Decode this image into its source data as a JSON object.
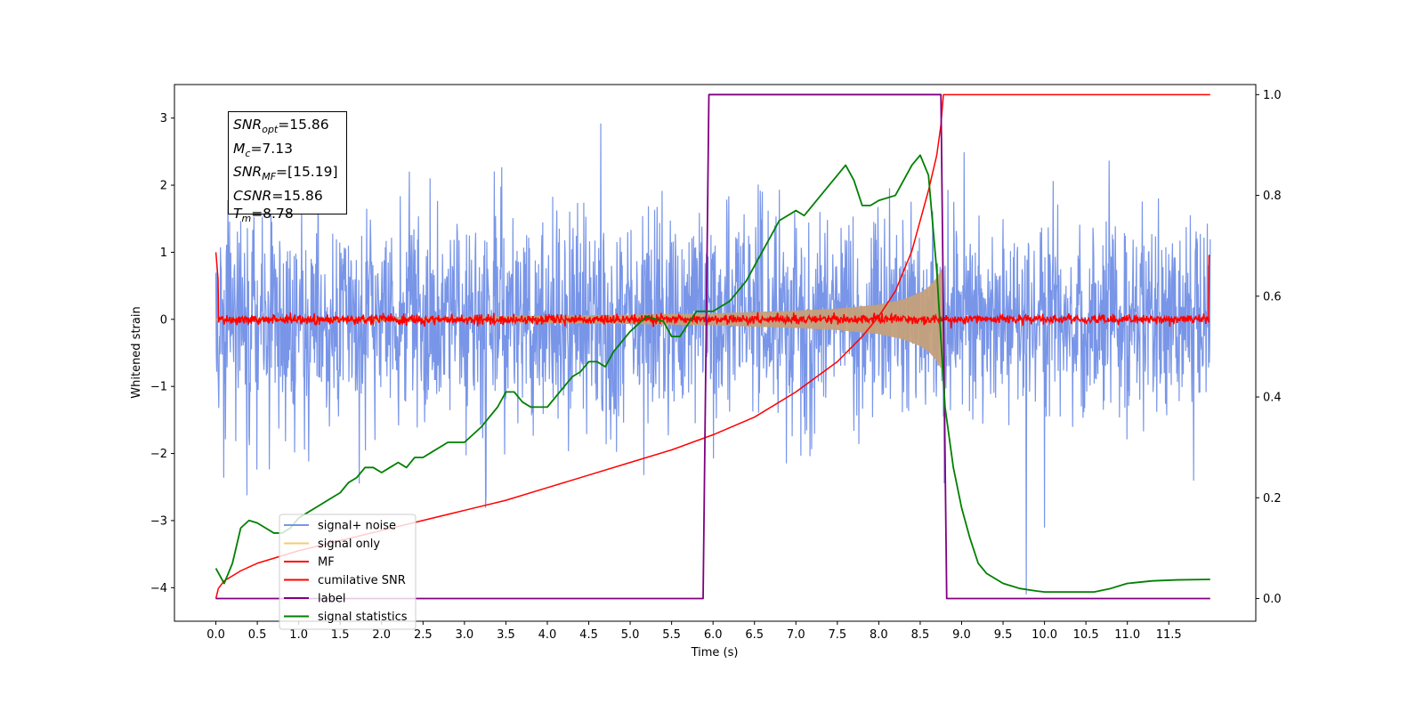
{
  "chart_data": {
    "type": "line",
    "xlabel": "Time (s)",
    "ylabel": "Whitened strain",
    "xlim": [
      -0.5,
      12.55
    ],
    "ylim": [
      -4.5,
      3.5
    ],
    "y2lim": [
      -0.045,
      1.02
    ],
    "x_ticks": [
      0.0,
      0.5,
      1.0,
      1.5,
      2.0,
      2.5,
      3.0,
      3.5,
      4.0,
      4.5,
      5.0,
      5.5,
      6.0,
      6.5,
      7.0,
      7.5,
      8.0,
      8.5,
      9.0,
      9.5,
      10.0,
      10.5,
      11.0,
      11.5
    ],
    "x_tick_labels": [
      "0.0",
      "0.5",
      "1.0",
      "1.5",
      "2.0",
      "2.5",
      "3.0",
      "3.5",
      "4.0",
      "4.5",
      "5.0",
      "5.5",
      "6.0",
      "6.5",
      "7.0",
      "7.5",
      "8.0",
      "8.5",
      "9.0",
      "9.5",
      "10.0",
      "10.5",
      "11.0",
      "11.5"
    ],
    "y_ticks": [
      3,
      2,
      1,
      0,
      -1,
      -2,
      -3,
      -4
    ],
    "y_tick_labels": [
      "3",
      "2",
      "1",
      "0",
      "−1",
      "−2",
      "−3",
      "−4"
    ],
    "y2_ticks": [
      1.0,
      0.8,
      0.6,
      0.4,
      0.2,
      0.0
    ],
    "y2_tick_labels": [
      "1.0",
      "0.8",
      "0.6",
      "0.4",
      "0.2",
      "0.0"
    ],
    "legend_placement": "lower-left",
    "grid": false,
    "annotation_lines": [
      {
        "name": "SNR",
        "sub": "opt",
        "value": "=15.86"
      },
      {
        "name": "M",
        "sub": "c",
        "value": "=7.13"
      },
      {
        "name": "SNR",
        "sub": "MF",
        "value": "=[15.19]"
      },
      {
        "name": "CSNR",
        "sub": "",
        "value": "=15.86"
      },
      {
        "name": "T",
        "sub": "m",
        "value": "=8.78"
      }
    ],
    "series": [
      {
        "name": "signal+ noise",
        "color": "#7895e8",
        "axis": "left",
        "kind": "noise",
        "std": 0.75,
        "x_range": [
          0.0,
          12.0
        ]
      },
      {
        "name": "signal only",
        "color": "#f5c97a",
        "fill_color": "#c4a07a",
        "axis": "left",
        "kind": "chirp_envelope",
        "x": [
          0.0,
          3.0,
          5.0,
          6.0,
          7.0,
          7.5,
          8.0,
          8.3,
          8.5,
          8.6,
          8.7,
          8.78
        ],
        "y": [
          0.02,
          0.04,
          0.07,
          0.09,
          0.13,
          0.16,
          0.22,
          0.3,
          0.4,
          0.48,
          0.62,
          0.8
        ]
      },
      {
        "name": "MF",
        "color": "#ff0000",
        "axis": "left",
        "kind": "noise_band",
        "std": 0.035,
        "x_range": [
          0.0,
          12.0
        ]
      },
      {
        "name": "cumilative SNR",
        "color": "#ff0000",
        "axis": "right",
        "x": [
          0.0,
          0.03,
          0.1,
          0.3,
          0.5,
          1.0,
          1.5,
          2.0,
          2.5,
          3.0,
          3.5,
          4.0,
          4.5,
          5.0,
          5.5,
          6.0,
          6.5,
          7.0,
          7.5,
          7.8,
          8.0,
          8.2,
          8.4,
          8.5,
          8.6,
          8.7,
          8.75,
          8.78,
          12.0
        ],
        "y": [
          0.0,
          0.02,
          0.035,
          0.055,
          0.07,
          0.095,
          0.115,
          0.135,
          0.155,
          0.175,
          0.195,
          0.22,
          0.245,
          0.27,
          0.295,
          0.325,
          0.36,
          0.41,
          0.47,
          0.52,
          0.56,
          0.61,
          0.69,
          0.75,
          0.81,
          0.88,
          0.94,
          1.0,
          1.0
        ]
      },
      {
        "name": "label",
        "color": "#800080",
        "axis": "right",
        "x": [
          0.0,
          5.88,
          5.95,
          8.75,
          8.82,
          12.0
        ],
        "y": [
          0.0,
          0.0,
          1.0,
          1.0,
          0.0,
          0.0
        ]
      },
      {
        "name": "signal statistics",
        "color": "#008000",
        "axis": "right",
        "x": [
          0.0,
          0.1,
          0.2,
          0.3,
          0.4,
          0.5,
          0.6,
          0.7,
          0.8,
          0.9,
          1.0,
          1.2,
          1.4,
          1.5,
          1.6,
          1.7,
          1.8,
          1.9,
          2.0,
          2.1,
          2.2,
          2.3,
          2.4,
          2.5,
          2.6,
          2.8,
          3.0,
          3.2,
          3.4,
          3.5,
          3.6,
          3.7,
          3.8,
          4.0,
          4.2,
          4.3,
          4.4,
          4.5,
          4.6,
          4.7,
          4.8,
          5.0,
          5.2,
          5.4,
          5.5,
          5.6,
          5.8,
          6.0,
          6.2,
          6.4,
          6.5,
          6.6,
          6.8,
          7.0,
          7.1,
          7.2,
          7.4,
          7.5,
          7.6,
          7.7,
          7.8,
          7.9,
          8.0,
          8.2,
          8.4,
          8.5,
          8.6,
          8.7,
          8.8,
          8.9,
          9.0,
          9.1,
          9.2,
          9.3,
          9.5,
          9.7,
          9.9,
          10.0,
          10.3,
          10.6,
          10.8,
          11.0,
          11.3,
          11.6,
          12.0
        ],
        "y": [
          0.06,
          0.03,
          0.07,
          0.14,
          0.155,
          0.15,
          0.14,
          0.13,
          0.13,
          0.14,
          0.16,
          0.18,
          0.2,
          0.21,
          0.23,
          0.24,
          0.26,
          0.26,
          0.25,
          0.26,
          0.27,
          0.26,
          0.28,
          0.28,
          0.29,
          0.31,
          0.31,
          0.34,
          0.38,
          0.41,
          0.41,
          0.39,
          0.38,
          0.38,
          0.42,
          0.44,
          0.45,
          0.47,
          0.47,
          0.46,
          0.49,
          0.53,
          0.56,
          0.55,
          0.52,
          0.52,
          0.57,
          0.57,
          0.59,
          0.63,
          0.66,
          0.69,
          0.75,
          0.77,
          0.76,
          0.78,
          0.82,
          0.84,
          0.86,
          0.83,
          0.78,
          0.78,
          0.79,
          0.8,
          0.86,
          0.88,
          0.84,
          0.65,
          0.38,
          0.26,
          0.18,
          0.12,
          0.07,
          0.05,
          0.03,
          0.02,
          0.015,
          0.013,
          0.013,
          0.013,
          0.02,
          0.03,
          0.035,
          0.037,
          0.038
        ]
      }
    ]
  }
}
